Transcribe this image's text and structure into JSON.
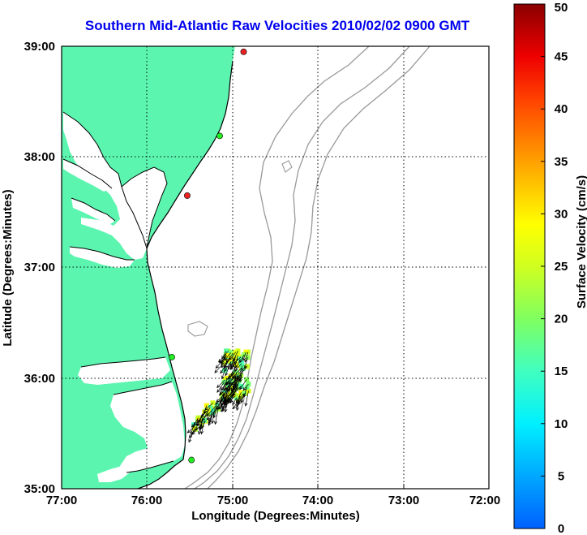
{
  "title": "Southern Mid-Atlantic Raw Velocities 2010/02/02 0900 GMT",
  "x_axis": {
    "label": "Longitude (Degrees:Minutes)",
    "ticks": [
      "77:00",
      "76:00",
      "75:00",
      "74:00",
      "73:00",
      "72:00"
    ]
  },
  "y_axis": {
    "label": "Latitude (Degrees:Minutes)",
    "ticks": [
      "39:00",
      "38:00",
      "37:00",
      "36:00",
      "35:00"
    ]
  },
  "colorbar": {
    "label": "Surface Velocity (cm/s)",
    "ticks": [
      "50",
      "45",
      "40",
      "35",
      "30",
      "25",
      "20",
      "15",
      "10",
      "5",
      "0"
    ],
    "min": 0,
    "max": 50
  },
  "colors": {
    "land": "#5cf5b0",
    "coast": "#000000",
    "bathymetry": "#999999",
    "grid": "#000000",
    "title": "#0000ee",
    "site_active": "#22ee22",
    "site_inactive": "#ee2222"
  },
  "sites": [
    {
      "lon": -74.87,
      "lat": 38.95,
      "status": "inactive"
    },
    {
      "lon": -75.15,
      "lat": 38.19,
      "status": "active"
    },
    {
      "lon": -75.53,
      "lat": 37.65,
      "status": "inactive"
    },
    {
      "lon": -75.71,
      "lat": 36.19,
      "status": "active"
    },
    {
      "lon": -75.48,
      "lat": 35.26,
      "status": "active"
    }
  ],
  "chart_data": {
    "type": "vector_map",
    "xlim": [
      -77.0,
      -72.0
    ],
    "ylim": [
      35.0,
      39.0
    ],
    "grid": true,
    "vector_field": {
      "region_lon": [
        -75.5,
        -74.8
      ],
      "region_lat": [
        35.5,
        36.3
      ],
      "speed_range_cm_s": [
        15,
        30
      ],
      "dominant_direction": "south-southwest"
    }
  }
}
